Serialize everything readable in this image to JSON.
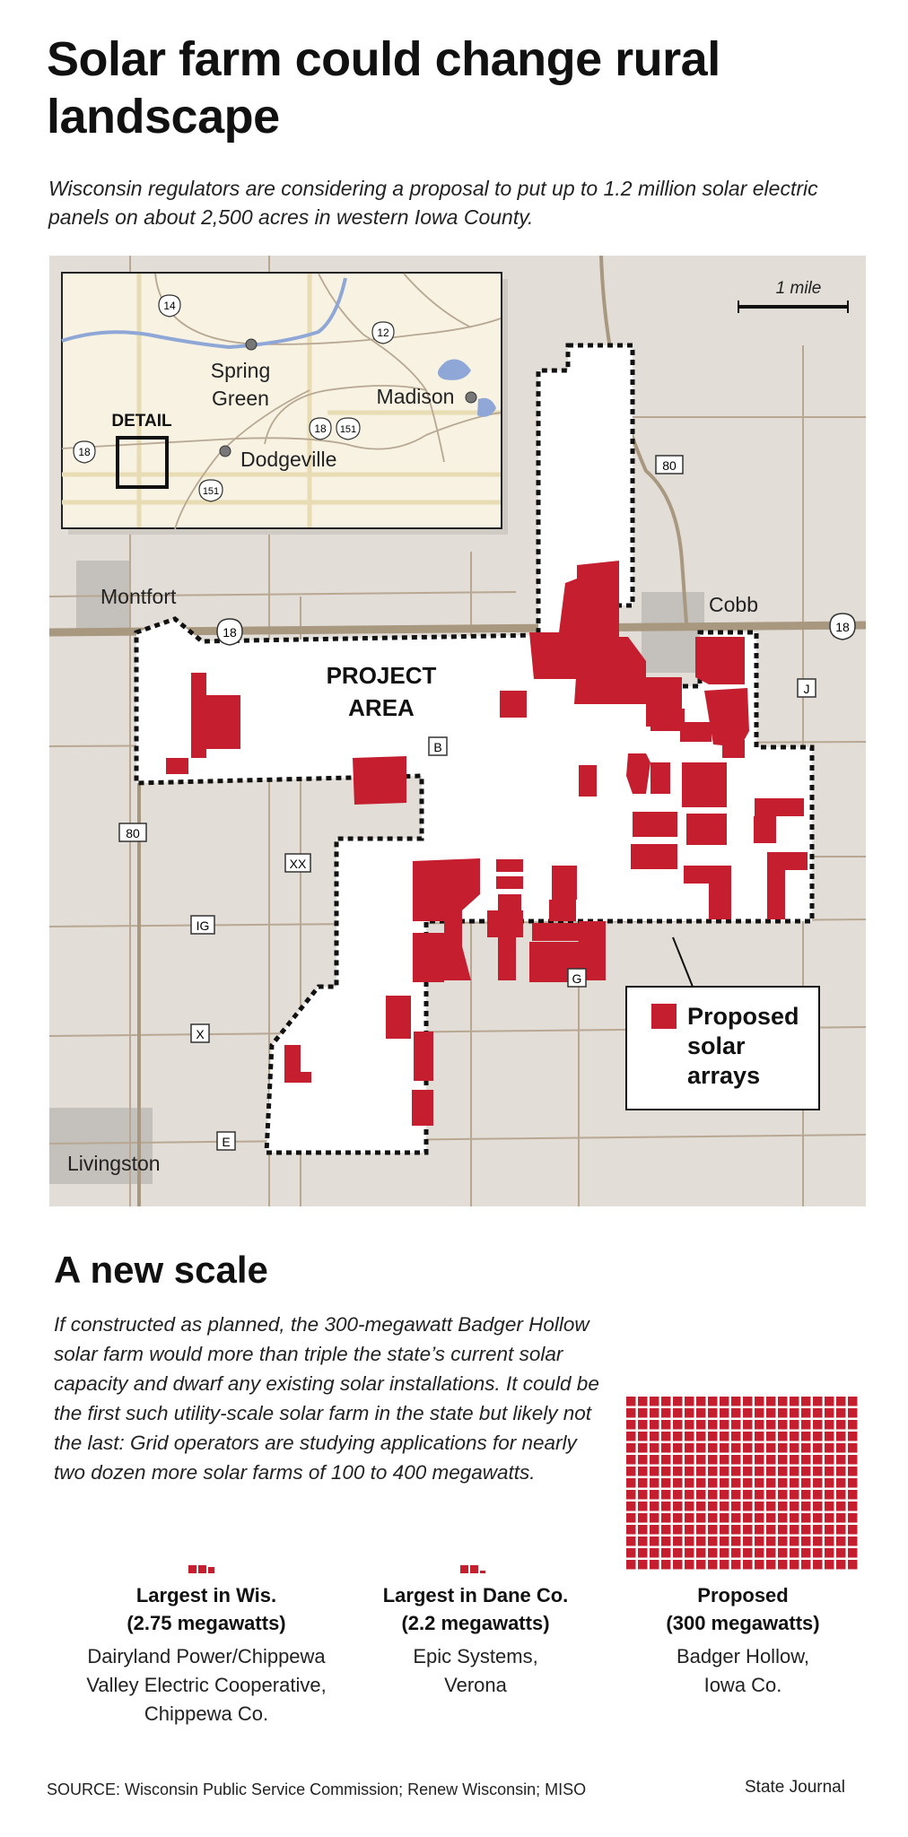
{
  "title": "Solar farm could change rural landscape",
  "subtitle": "Wisconsin regulators are considering a proposal to put up to 1.2 million solar electric panels on about 2,500 acres in western Iowa County.",
  "map": {
    "scale_label": "1 mile",
    "places": {
      "montfort": "Montfort",
      "cobb": "Cobb",
      "livingston": "Livingston"
    },
    "project_area_lines": [
      "PROJECT",
      "AREA"
    ],
    "legend_lines": [
      "Proposed",
      "solar",
      "arrays"
    ],
    "roads": {
      "r18a": "18",
      "r18b": "18",
      "r80a": "80",
      "r80b": "80",
      "b": "B",
      "xx": "XX",
      "ig": "IG",
      "g": "G",
      "x": "X",
      "e": "E",
      "j": "J"
    },
    "inset": {
      "detail": "DETAIL",
      "spring_green": [
        "Spring",
        "Green"
      ],
      "madison": "Madison",
      "dodgeville": "Dodgeville",
      "roads": {
        "r14": "14",
        "r12": "12",
        "r18w": "18",
        "r18": "18",
        "r151": "151",
        "r151s": "151"
      }
    },
    "colors": {
      "land": "#e2ddd7",
      "project": "#ffffff",
      "arrays": "#c41e2f",
      "roads": "#b0a08c",
      "towns": "#c4c0bb",
      "inset_bg": "#f7f2e2",
      "water": "#8fa7d6"
    }
  },
  "scale_section": {
    "title": "A new scale",
    "text": "If constructed as planned, the 300-megawatt Badger Hollow solar farm would more than triple the state’s current solar capacity and dwarf any existing solar installations. It could be the first such utility-scale solar farm in the state but likely not the last: Grid operators are studying applications for nearly two dozen more solar farms of 100 to 400 megawatts."
  },
  "comparisons": [
    {
      "head": [
        "Largest in Wis.",
        "(2.75 megawatts)"
      ],
      "desc": [
        "Dairyland Power/Chippewa",
        "Valley Electric Cooperative,",
        "Chippewa Co."
      ],
      "megawatts": 2.75
    },
    {
      "head": [
        "Largest in Dane Co.",
        "(2.2 megawatts)"
      ],
      "desc": [
        "Epic Systems,",
        "Verona"
      ],
      "megawatts": 2.2
    },
    {
      "head": [
        "Proposed",
        "(300 megawatts)"
      ],
      "desc": [
        "Badger Hollow,",
        "Iowa Co."
      ],
      "megawatts": 300
    }
  ],
  "source": "SOURCE: Wisconsin Public Service Commission; Renew Wisconsin; MISO",
  "credit": "State Journal"
}
